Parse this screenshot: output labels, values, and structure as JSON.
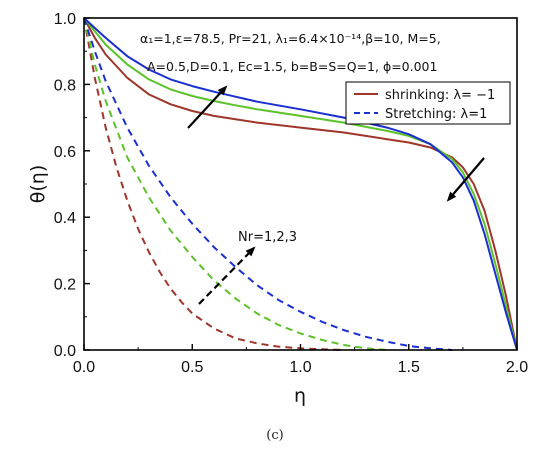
{
  "chart_data": {
    "type": "line",
    "xlabel": "η",
    "ylabel": "θ(η)",
    "xlim": [
      0,
      2
    ],
    "ylim": [
      0,
      1
    ],
    "xticks": [
      "0.0",
      "0.5",
      "1.0",
      "1.5",
      "2.0"
    ],
    "yticks": [
      "0.0",
      "0.2",
      "0.4",
      "0.6",
      "0.8",
      "1.0"
    ],
    "parameters": {
      "line1": "α₁=1,ε=78.5, Pr=21, λ₁=6.4×10⁻¹⁴,β=10, M=5,",
      "line2": "A=0.5,D=0.1, Ec=1.5, b=B=S=Q=1, ϕ=0.001"
    },
    "annotation": "Nr=1,2,3",
    "legend": [
      {
        "label": "shrinking: λ= −1",
        "style": "solid",
        "color": "#a0352a"
      },
      {
        "label": "Stretching: λ=1",
        "style": "dashed",
        "color": "#1a2fd0"
      }
    ],
    "series": [
      {
        "group": "shrinking",
        "color": "#a0352a",
        "style": "solid",
        "x": [
          0,
          0.05,
          0.1,
          0.2,
          0.3,
          0.4,
          0.5,
          0.6,
          0.7,
          0.8,
          1.0,
          1.2,
          1.4,
          1.5,
          1.6,
          1.7,
          1.75,
          1.8,
          1.85,
          1.9,
          1.95,
          2.0
        ],
        "y": [
          1.0,
          0.94,
          0.89,
          0.82,
          0.77,
          0.74,
          0.72,
          0.705,
          0.695,
          0.685,
          0.67,
          0.655,
          0.635,
          0.625,
          0.61,
          0.58,
          0.55,
          0.5,
          0.42,
          0.3,
          0.16,
          0.0
        ]
      },
      {
        "group": "shrinking",
        "color": "#5cc22a",
        "style": "solid",
        "x": [
          0,
          0.05,
          0.1,
          0.2,
          0.3,
          0.4,
          0.5,
          0.6,
          0.7,
          0.8,
          1.0,
          1.2,
          1.4,
          1.5,
          1.6,
          1.7,
          1.75,
          1.8,
          1.85,
          1.9,
          1.95,
          2.0
        ],
        "y": [
          1.0,
          0.96,
          0.92,
          0.86,
          0.815,
          0.785,
          0.765,
          0.75,
          0.737,
          0.725,
          0.705,
          0.685,
          0.66,
          0.645,
          0.62,
          0.575,
          0.535,
          0.47,
          0.38,
          0.26,
          0.13,
          0.0
        ]
      },
      {
        "group": "shrinking",
        "color": "#1a2fd0",
        "style": "solid",
        "x": [
          0,
          0.05,
          0.1,
          0.2,
          0.3,
          0.4,
          0.5,
          0.6,
          0.7,
          0.8,
          1.0,
          1.2,
          1.4,
          1.5,
          1.6,
          1.7,
          1.75,
          1.8,
          1.85,
          1.9,
          1.95,
          2.0
        ],
        "y": [
          1.0,
          0.97,
          0.94,
          0.885,
          0.845,
          0.815,
          0.795,
          0.778,
          0.763,
          0.748,
          0.725,
          0.7,
          0.67,
          0.65,
          0.62,
          0.565,
          0.52,
          0.45,
          0.35,
          0.23,
          0.11,
          0.0
        ]
      },
      {
        "group": "stretching",
        "color": "#a0352a",
        "style": "dashed",
        "x": [
          0,
          0.05,
          0.1,
          0.15,
          0.2,
          0.25,
          0.3,
          0.35,
          0.4,
          0.45,
          0.5,
          0.6,
          0.7,
          0.8,
          0.9,
          1.0,
          1.1,
          1.2
        ],
        "y": [
          1.0,
          0.82,
          0.67,
          0.55,
          0.45,
          0.365,
          0.295,
          0.235,
          0.185,
          0.145,
          0.11,
          0.065,
          0.035,
          0.02,
          0.01,
          0.005,
          0.002,
          0.0
        ]
      },
      {
        "group": "stretching",
        "color": "#5cc22a",
        "style": "dashed",
        "x": [
          0,
          0.05,
          0.1,
          0.2,
          0.3,
          0.4,
          0.5,
          0.6,
          0.7,
          0.8,
          0.9,
          1.0,
          1.1,
          1.2,
          1.3,
          1.4
        ],
        "y": [
          1.0,
          0.86,
          0.75,
          0.58,
          0.46,
          0.36,
          0.28,
          0.21,
          0.155,
          0.11,
          0.075,
          0.05,
          0.03,
          0.015,
          0.005,
          0.0
        ]
      },
      {
        "group": "stretching",
        "color": "#1a2fd0",
        "style": "dashed",
        "x": [
          0,
          0.05,
          0.1,
          0.2,
          0.3,
          0.4,
          0.5,
          0.6,
          0.7,
          0.8,
          0.9,
          1.0,
          1.1,
          1.2,
          1.3,
          1.4,
          1.5,
          1.6,
          1.7
        ],
        "y": [
          1.0,
          0.9,
          0.81,
          0.67,
          0.555,
          0.46,
          0.38,
          0.31,
          0.25,
          0.195,
          0.15,
          0.115,
          0.085,
          0.06,
          0.04,
          0.025,
          0.012,
          0.005,
          0.0
        ]
      }
    ]
  },
  "caption": "(c)"
}
